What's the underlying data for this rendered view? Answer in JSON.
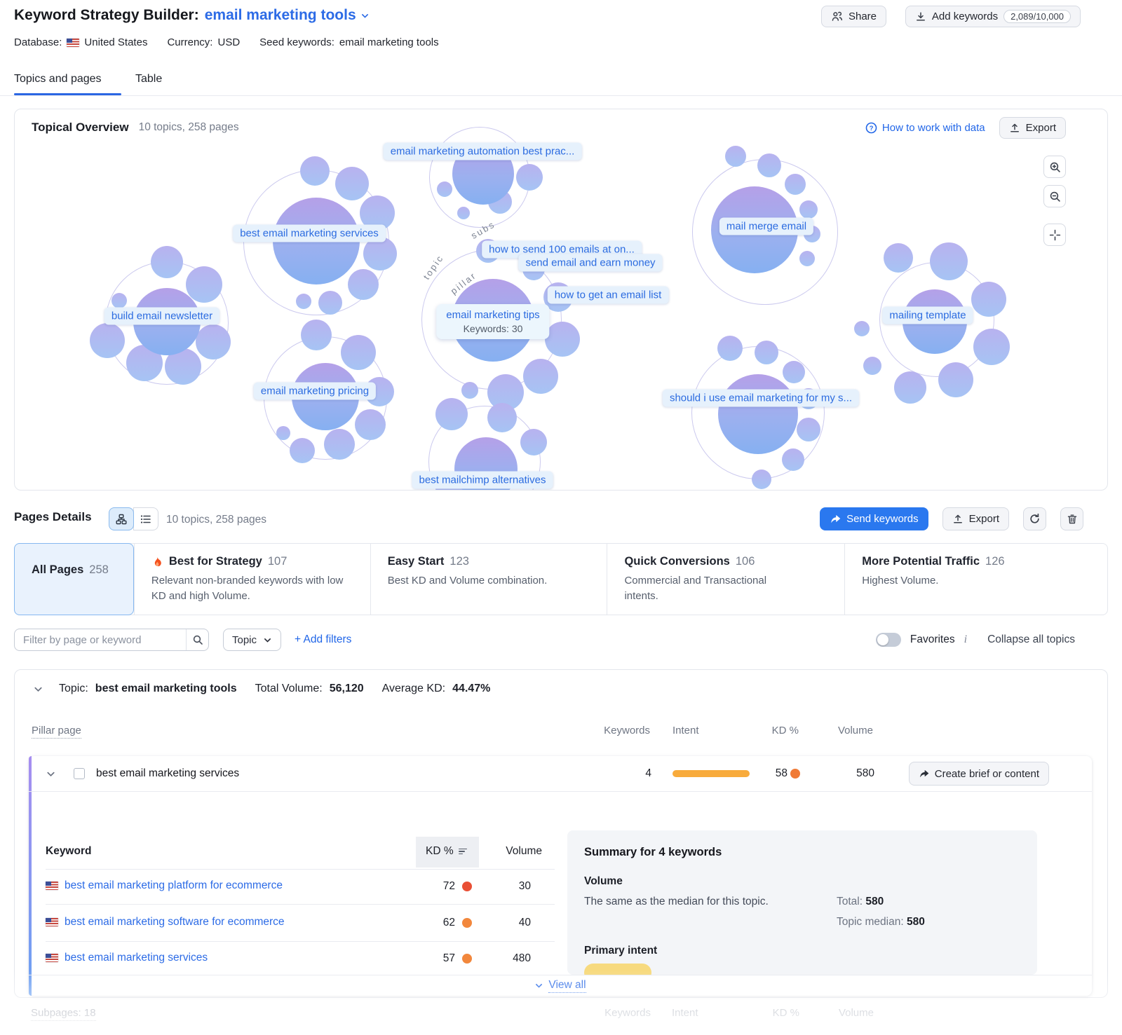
{
  "header": {
    "title": "Keyword Strategy Builder:",
    "project_name": "email marketing tools",
    "share_label": "Share",
    "add_keywords_label": "Add keywords",
    "keywords_count": "2,089/10,000",
    "database_label": "Database:",
    "database_value": "United States",
    "currency_label": "Currency:",
    "currency_value": "USD",
    "seed_label": "Seed keywords:",
    "seed_value": "email marketing tools",
    "tab_topics": "Topics and pages",
    "tab_table": "Table"
  },
  "overview": {
    "title": "Topical Overview",
    "stats": "10 topics, 258 pages",
    "help_link": "How to work with data",
    "export_label": "Export",
    "tooltip_title": "email marketing tips",
    "tooltip_keywords": "Keywords: 30",
    "ring_labels": [
      "subs",
      "topic",
      "pillar"
    ],
    "cluster_labels": [
      "email marketing automation best prac...",
      "best email marketing services",
      "build email newsletter",
      "email marketing pricing",
      "how to send 100 emails at on...",
      "send email and earn money",
      "how to get an email list",
      "mail merge email",
      "mailing template",
      "should i use email marketing for my s...",
      "best mailchimp alternatives"
    ]
  },
  "pages_details": {
    "title": "Pages Details",
    "stats": "10 topics, 258 pages",
    "send_keywords_label": "Send keywords",
    "export_label": "Export"
  },
  "strategy_tabs": [
    {
      "label": "All Pages",
      "count": "258",
      "desc": ""
    },
    {
      "label": "Best for Strategy",
      "count": "107",
      "desc": "Relevant non-branded keywords with low KD and high Volume."
    },
    {
      "label": "Easy Start",
      "count": "123",
      "desc": "Best KD and Volume combination."
    },
    {
      "label": "Quick Conversions",
      "count": "106",
      "desc": "Commercial and Transactional intents."
    },
    {
      "label": "More Potential Traffic",
      "count": "126",
      "desc": "Highest Volume."
    }
  ],
  "filters": {
    "search_placeholder": "Filter by page or keyword",
    "topic_label": "Topic",
    "add_filters_label": "+ Add filters",
    "favorites_label": "Favorites",
    "info_glyph": "i",
    "collapse_label": "Collapse all topics"
  },
  "topic_group": {
    "topic_label": "Topic:",
    "topic_name": "best email marketing tools",
    "total_volume_label": "Total Volume:",
    "total_volume_value": "56,120",
    "avg_kd_label": "Average KD:",
    "avg_kd_value": "44.47%",
    "col_pillar": "Pillar page",
    "col_keywords": "Keywords",
    "col_intent": "Intent",
    "col_kd": "KD %",
    "col_volume": "Volume",
    "pillar": {
      "title": "best email marketing services",
      "keywords": "4",
      "kd": "58",
      "volume": "580",
      "action_label": "Create brief or content"
    },
    "table": {
      "col_keyword": "Keyword",
      "col_kd": "KD %",
      "col_volume": "Volume",
      "rows": [
        {
          "keyword": "best email marketing platform for ecommerce",
          "kd": "72",
          "kd_color": "#e94f35",
          "volume": "30"
        },
        {
          "keyword": "best email marketing software for ecommerce",
          "kd": "62",
          "kd_color": "#f2873c",
          "volume": "40"
        },
        {
          "keyword": "best email marketing services",
          "kd": "57",
          "kd_color": "#f2873c",
          "volume": "480"
        }
      ]
    },
    "summary": {
      "title": "Summary for 4 keywords",
      "volume_heading": "Volume",
      "volume_note": "The same as the median for this topic.",
      "total_label": "Total:",
      "total_value": "580",
      "median_label": "Topic median:",
      "median_value": "580",
      "intent_heading": "Primary intent"
    },
    "view_all_label": "View all"
  },
  "subpages": {
    "label": "Subpages: 18",
    "col_keywords": "Keywords",
    "col_intent": "Intent",
    "col_kd": "KD %",
    "col_volume": "Volume"
  },
  "colors": {
    "accent": "#2c6be6",
    "intent_bar": "#f8ab3c",
    "kd_pillar_dot": "#f07a36",
    "intent_badge": "#f7da7f"
  }
}
